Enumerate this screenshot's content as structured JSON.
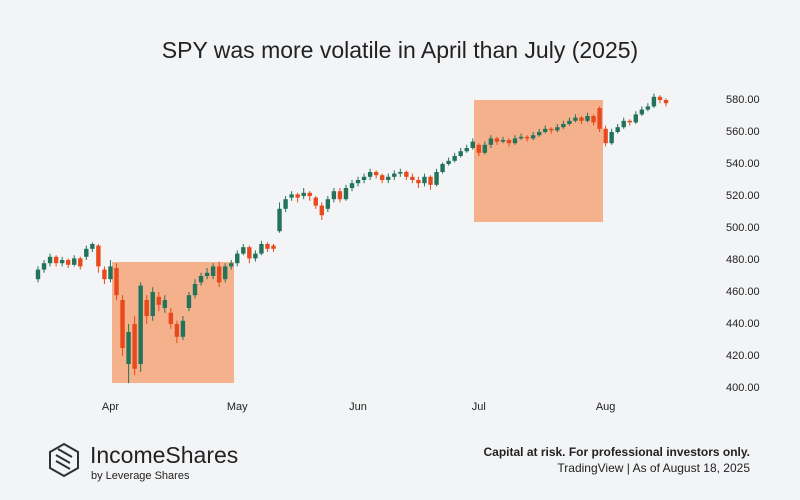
{
  "chart_data": {
    "type": "candlestick",
    "title": "SPY was more volatile in April than July (2025)",
    "categories": [
      null,
      null,
      null,
      null,
      null,
      null,
      null,
      null,
      null,
      null,
      null,
      null,
      "Apr",
      null,
      null,
      null,
      null,
      null,
      null,
      null,
      null,
      null,
      null,
      null,
      null,
      null,
      null,
      null,
      null,
      null,
      null,
      null,
      null,
      "May",
      null,
      null,
      null,
      null,
      null,
      null,
      null,
      null,
      null,
      null,
      null,
      null,
      null,
      null,
      null,
      null,
      null,
      null,
      null,
      "Jun",
      null,
      null,
      null,
      null,
      null,
      null,
      null,
      null,
      null,
      null,
      null,
      null,
      null,
      null,
      null,
      null,
      null,
      null,
      null,
      "Jul",
      null,
      null,
      null,
      null,
      null,
      null,
      null,
      null,
      null,
      null,
      null,
      null,
      null,
      null,
      null,
      null,
      null,
      null,
      null,
      null,
      "Aug",
      null,
      null,
      null,
      null,
      null,
      null,
      null,
      null,
      null,
      null
    ],
    "open": [
      468,
      474,
      478,
      482,
      478,
      480,
      477,
      481,
      482,
      487,
      489,
      474,
      468,
      475,
      455,
      415,
      440,
      415,
      455,
      445,
      457,
      450,
      447,
      440,
      432,
      450,
      458,
      466,
      470,
      470,
      476,
      468,
      476,
      478,
      484,
      488,
      481,
      484,
      490,
      489,
      498,
      512,
      519,
      521,
      520,
      522,
      519,
      514,
      512,
      518,
      523,
      518,
      525,
      528,
      530,
      532,
      535,
      533,
      530,
      532,
      534,
      535,
      532,
      530,
      528,
      532,
      527,
      535,
      540,
      542,
      545,
      548,
      550,
      552,
      547,
      552,
      556,
      554,
      555,
      553,
      556,
      557,
      556,
      558,
      560,
      562,
      561,
      563,
      565,
      567,
      569,
      567,
      570,
      575,
      562,
      553,
      560,
      563,
      567,
      566,
      571,
      574,
      576,
      582,
      580
    ],
    "high": [
      476,
      480,
      484,
      483,
      482,
      481,
      483,
      482,
      489,
      491,
      490,
      476,
      480,
      478,
      458,
      440,
      445,
      466,
      458,
      463,
      460,
      458,
      450,
      442,
      445,
      460,
      468,
      472,
      475,
      478,
      479,
      478,
      480,
      486,
      490,
      489,
      486,
      492,
      491,
      490,
      516,
      520,
      523,
      522,
      525,
      523,
      520,
      516,
      520,
      525,
      525,
      527,
      530,
      532,
      534,
      537,
      536,
      534,
      534,
      536,
      537,
      536,
      534,
      532,
      534,
      533,
      537,
      541,
      544,
      547,
      550,
      552,
      556,
      553,
      554,
      558,
      557,
      557,
      556,
      558,
      559,
      558,
      560,
      562,
      564,
      563,
      565,
      567,
      569,
      571,
      570,
      572,
      571,
      576,
      564,
      562,
      565,
      569,
      568,
      573,
      576,
      578,
      584,
      583,
      581
    ],
    "low": [
      466,
      472,
      476,
      476,
      476,
      475,
      476,
      474,
      480,
      485,
      472,
      465,
      466,
      455,
      420,
      403,
      408,
      410,
      440,
      442,
      448,
      447,
      437,
      428,
      430,
      448,
      456,
      464,
      468,
      468,
      463,
      466,
      474,
      476,
      483,
      478,
      479,
      483,
      485,
      485,
      497,
      510,
      517,
      516,
      518,
      517,
      512,
      505,
      510,
      516,
      516,
      517,
      523,
      526,
      528,
      530,
      531,
      528,
      528,
      530,
      532,
      530,
      528,
      525,
      526,
      524,
      526,
      534,
      539,
      541,
      544,
      547,
      549,
      545,
      546,
      550,
      552,
      553,
      551,
      552,
      555,
      554,
      555,
      557,
      559,
      559,
      560,
      562,
      564,
      566,
      565,
      566,
      564,
      560,
      551,
      552,
      559,
      562,
      564,
      565,
      570,
      573,
      575,
      578,
      576
    ],
    "close": [
      474,
      478,
      482,
      478,
      480,
      477,
      481,
      476,
      487,
      490,
      476,
      468,
      476,
      458,
      425,
      435,
      412,
      464,
      445,
      460,
      452,
      455,
      440,
      432,
      442,
      458,
      465,
      470,
      472,
      476,
      466,
      476,
      478,
      484,
      488,
      481,
      484,
      490,
      487,
      487,
      512,
      518,
      521,
      519,
      522,
      520,
      514,
      508,
      518,
      523,
      518,
      525,
      528,
      530,
      532,
      535,
      533,
      530,
      532,
      534,
      535,
      532,
      530,
      528,
      532,
      527,
      535,
      540,
      542,
      545,
      548,
      550,
      554,
      547,
      552,
      556,
      554,
      555,
      553,
      556,
      557,
      556,
      558,
      560,
      562,
      561,
      563,
      565,
      567,
      569,
      567,
      570,
      566,
      562,
      553,
      560,
      563,
      567,
      566,
      571,
      574,
      576,
      582,
      580,
      578
    ],
    "up_color": "#23735a",
    "down_color": "#e8491d",
    "ylim": [
      392.5,
      588.75
    ],
    "yticks": [
      {
        "value": 400,
        "label": "400.00"
      },
      {
        "value": 420,
        "label": "420.00"
      },
      {
        "value": 440,
        "label": "440.00"
      },
      {
        "value": 460,
        "label": "460.00"
      },
      {
        "value": 480,
        "label": "480.00"
      },
      {
        "value": 500,
        "label": "500.00"
      },
      {
        "value": 520,
        "label": "520.00"
      },
      {
        "value": 540,
        "label": "540.00"
      },
      {
        "value": 560,
        "label": "560.00"
      },
      {
        "value": 580,
        "label": "580.00"
      }
    ],
    "grid": false
  },
  "footer": {
    "brand": "IncomeShares",
    "brand_sub": "by Leverage Shares",
    "disclaimer": "Capital at risk. For professional investors only.",
    "source": "TradingView | As of August 18, 2025"
  }
}
